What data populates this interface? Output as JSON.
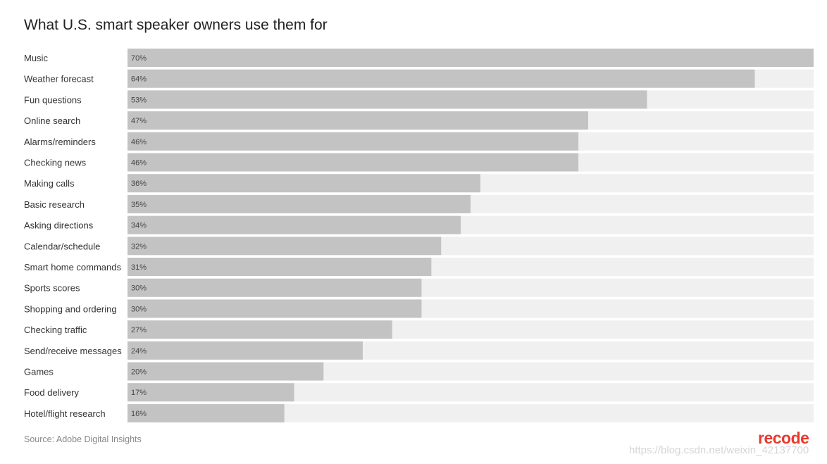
{
  "title": "What U.S. smart speaker owners use them for",
  "source": "Source: Adobe Digital Insights",
  "brand": "recode",
  "watermark": "https://blog.csdn.net/weixin_42137700",
  "colors": {
    "bar": "#c3c3c3",
    "track": "#f0f0f0",
    "label": "#333333",
    "value": "#444444",
    "brand": "#e8392d"
  },
  "chart_data": {
    "type": "bar",
    "orientation": "horizontal",
    "title": "What U.S. smart speaker owners use them for",
    "categories": [
      "Music",
      "Weather forecast",
      "Fun questions",
      "Online search",
      "Alarms/reminders",
      "Checking news",
      "Making calls",
      "Basic research",
      "Asking directions",
      "Calendar/schedule",
      "Smart home commands",
      "Sports scores",
      "Shopping and ordering",
      "Checking traffic",
      "Send/receive messages",
      "Games",
      "Food delivery",
      "Hotel/flight research"
    ],
    "values": [
      70,
      64,
      53,
      47,
      46,
      46,
      36,
      35,
      34,
      32,
      31,
      30,
      30,
      27,
      24,
      20,
      17,
      16
    ],
    "value_labels": [
      "70%",
      "64%",
      "53%",
      "47%",
      "46%",
      "46%",
      "36%",
      "35%",
      "34%",
      "32%",
      "31%",
      "30%",
      "30%",
      "27%",
      "24%",
      "20%",
      "17%",
      "16%"
    ],
    "xlim": [
      0,
      70
    ],
    "source": "Source: Adobe Digital Insights"
  }
}
